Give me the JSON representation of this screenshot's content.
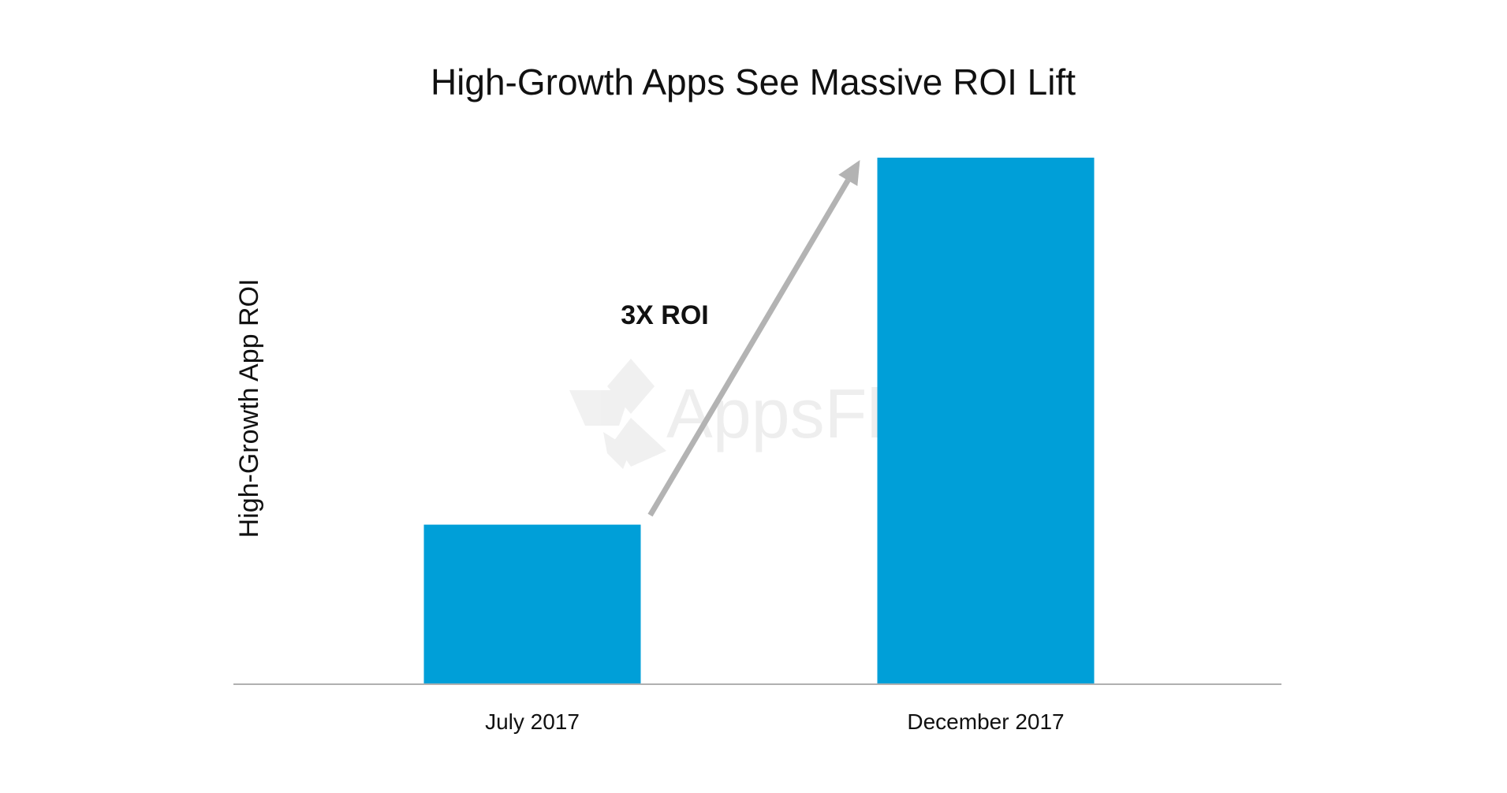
{
  "chart_data": {
    "type": "bar",
    "title": "High-Growth Apps See Massive ROI Lift",
    "ylabel": "High-Growth App ROI",
    "xlabel": "",
    "categories": [
      "July 2017",
      "December 2017"
    ],
    "values": [
      1,
      3.3
    ],
    "ylim": [
      0,
      3.3
    ],
    "y_ticks_shown": false,
    "grid": false,
    "legend": "none",
    "annotation": {
      "text": "3X ROI",
      "arrow_from": "July 2017",
      "arrow_to": "December 2017"
    },
    "watermark": "AppsFlyer",
    "colors": {
      "bar": "#009FD8",
      "arrow": "#B3B3B3",
      "axis": "#B0B0B0",
      "text": "#111111"
    }
  }
}
